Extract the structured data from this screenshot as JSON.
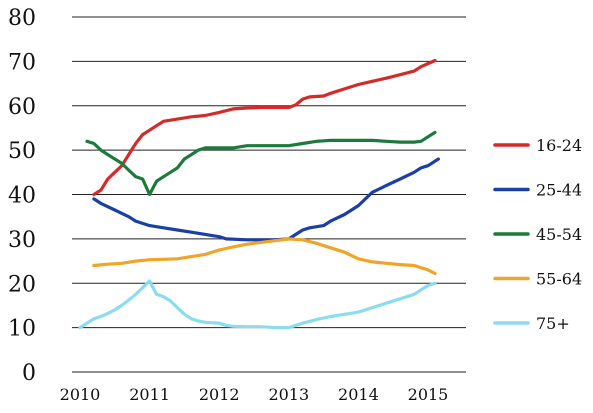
{
  "chart_data": {
    "type": "line",
    "title": "",
    "xlabel": "",
    "ylabel": "",
    "ylim": [
      0,
      80
    ],
    "xlim": [
      2010,
      2015
    ],
    "yticks": [
      "0",
      "10",
      "20",
      "30",
      "40",
      "50",
      "60",
      "70",
      "80"
    ],
    "xticks": [
      "2010",
      "2011",
      "2012",
      "2013",
      "2014",
      "2015"
    ],
    "grid": true,
    "legend_position": "right",
    "series": [
      {
        "name": "16-24",
        "color": "#d42a28",
        "points": [
          [
            2010.2,
            40
          ],
          [
            2010.3,
            41
          ],
          [
            2010.4,
            43.5
          ],
          [
            2010.5,
            45
          ],
          [
            2010.6,
            46.5
          ],
          [
            2010.7,
            49
          ],
          [
            2010.8,
            51.5
          ],
          [
            2010.9,
            53.5
          ],
          [
            2011.0,
            54.5
          ],
          [
            2011.1,
            55.5
          ],
          [
            2011.2,
            56.5
          ],
          [
            2011.4,
            57
          ],
          [
            2011.6,
            57.5
          ],
          [
            2011.8,
            57.8
          ],
          [
            2012.0,
            58.5
          ],
          [
            2012.2,
            59.3
          ],
          [
            2012.4,
            59.5
          ],
          [
            2012.6,
            59.6
          ],
          [
            2012.8,
            59.6
          ],
          [
            2013.0,
            59.6
          ],
          [
            2013.1,
            60.2
          ],
          [
            2013.2,
            61.5
          ],
          [
            2013.3,
            62
          ],
          [
            2013.5,
            62.2
          ],
          [
            2013.6,
            62.8
          ],
          [
            2013.8,
            63.8
          ],
          [
            2014.0,
            64.8
          ],
          [
            2014.2,
            65.5
          ],
          [
            2014.4,
            66.2
          ],
          [
            2014.6,
            67
          ],
          [
            2014.8,
            67.8
          ],
          [
            2014.9,
            68.8
          ],
          [
            2015.0,
            69.5
          ],
          [
            2015.1,
            70.2
          ]
        ]
      },
      {
        "name": "25-44",
        "color": "#1a3fa6",
        "points": [
          [
            2010.2,
            39
          ],
          [
            2010.3,
            38
          ],
          [
            2010.5,
            36.5
          ],
          [
            2010.7,
            35
          ],
          [
            2010.8,
            34
          ],
          [
            2011.0,
            33
          ],
          [
            2011.2,
            32.5
          ],
          [
            2011.4,
            32
          ],
          [
            2011.6,
            31.5
          ],
          [
            2011.8,
            31
          ],
          [
            2012.0,
            30.5
          ],
          [
            2012.1,
            30
          ],
          [
            2012.4,
            29.8
          ],
          [
            2012.6,
            29.8
          ],
          [
            2012.8,
            29.8
          ],
          [
            2013.0,
            30
          ],
          [
            2013.1,
            31
          ],
          [
            2013.2,
            32
          ],
          [
            2013.3,
            32.5
          ],
          [
            2013.5,
            33
          ],
          [
            2013.6,
            34
          ],
          [
            2013.8,
            35.5
          ],
          [
            2014.0,
            37.5
          ],
          [
            2014.1,
            39
          ],
          [
            2014.2,
            40.5
          ],
          [
            2014.4,
            42
          ],
          [
            2014.6,
            43.5
          ],
          [
            2014.8,
            45
          ],
          [
            2014.9,
            46
          ],
          [
            2015.0,
            46.5
          ],
          [
            2015.1,
            47.5
          ],
          [
            2015.15,
            48
          ]
        ]
      },
      {
        "name": "45-54",
        "color": "#1d7a3c",
        "points": [
          [
            2010.1,
            52
          ],
          [
            2010.2,
            51.5
          ],
          [
            2010.3,
            50
          ],
          [
            2010.4,
            49
          ],
          [
            2010.5,
            48
          ],
          [
            2010.6,
            47
          ],
          [
            2010.7,
            45.5
          ],
          [
            2010.8,
            44
          ],
          [
            2010.9,
            43.5
          ],
          [
            2011.0,
            40
          ],
          [
            2011.05,
            41.5
          ],
          [
            2011.1,
            43
          ],
          [
            2011.2,
            44
          ],
          [
            2011.3,
            45
          ],
          [
            2011.4,
            46
          ],
          [
            2011.5,
            48
          ],
          [
            2011.6,
            49
          ],
          [
            2011.7,
            50
          ],
          [
            2011.8,
            50.5
          ],
          [
            2012.0,
            50.5
          ],
          [
            2012.2,
            50.5
          ],
          [
            2012.4,
            51
          ],
          [
            2012.6,
            51
          ],
          [
            2012.8,
            51
          ],
          [
            2013.0,
            51
          ],
          [
            2013.2,
            51.5
          ],
          [
            2013.4,
            52
          ],
          [
            2013.6,
            52.2
          ],
          [
            2013.8,
            52.2
          ],
          [
            2014.0,
            52.2
          ],
          [
            2014.2,
            52.2
          ],
          [
            2014.4,
            52
          ],
          [
            2014.6,
            51.8
          ],
          [
            2014.8,
            51.8
          ],
          [
            2014.9,
            52
          ],
          [
            2015.0,
            53
          ],
          [
            2015.1,
            54
          ]
        ]
      },
      {
        "name": "55-64",
        "color": "#f0a428",
        "points": [
          [
            2010.2,
            24
          ],
          [
            2010.4,
            24.3
          ],
          [
            2010.6,
            24.5
          ],
          [
            2010.8,
            25
          ],
          [
            2011.0,
            25.3
          ],
          [
            2011.2,
            25.4
          ],
          [
            2011.4,
            25.5
          ],
          [
            2011.6,
            26
          ],
          [
            2011.8,
            26.5
          ],
          [
            2012.0,
            27.5
          ],
          [
            2012.2,
            28.2
          ],
          [
            2012.4,
            28.8
          ],
          [
            2012.6,
            29.2
          ],
          [
            2012.8,
            29.6
          ],
          [
            2013.0,
            30
          ],
          [
            2013.2,
            29.8
          ],
          [
            2013.4,
            29
          ],
          [
            2013.6,
            28
          ],
          [
            2013.8,
            27
          ],
          [
            2014.0,
            25.5
          ],
          [
            2014.2,
            24.8
          ],
          [
            2014.4,
            24.5
          ],
          [
            2014.6,
            24.2
          ],
          [
            2014.8,
            24
          ],
          [
            2015.0,
            23
          ],
          [
            2015.1,
            22.2
          ]
        ]
      },
      {
        "name": "75+",
        "color": "#8cdcf0",
        "points": [
          [
            2010.0,
            10
          ],
          [
            2010.1,
            11
          ],
          [
            2010.2,
            12
          ],
          [
            2010.3,
            12.5
          ],
          [
            2010.4,
            13.2
          ],
          [
            2010.5,
            14
          ],
          [
            2010.6,
            15
          ],
          [
            2010.7,
            16.2
          ],
          [
            2010.8,
            17.5
          ],
          [
            2010.9,
            19
          ],
          [
            2011.0,
            20.5
          ],
          [
            2011.05,
            19
          ],
          [
            2011.1,
            17.5
          ],
          [
            2011.2,
            17
          ],
          [
            2011.3,
            16
          ],
          [
            2011.4,
            14.5
          ],
          [
            2011.5,
            13
          ],
          [
            2011.6,
            12
          ],
          [
            2011.7,
            11.5
          ],
          [
            2011.8,
            11.2
          ],
          [
            2012.0,
            11
          ],
          [
            2012.1,
            10.5
          ],
          [
            2012.2,
            10.3
          ],
          [
            2012.4,
            10.2
          ],
          [
            2012.6,
            10.2
          ],
          [
            2012.8,
            10
          ],
          [
            2013.0,
            10
          ],
          [
            2013.1,
            10.5
          ],
          [
            2013.2,
            11
          ],
          [
            2013.4,
            11.8
          ],
          [
            2013.6,
            12.5
          ],
          [
            2013.8,
            13
          ],
          [
            2014.0,
            13.5
          ],
          [
            2014.2,
            14.5
          ],
          [
            2014.4,
            15.5
          ],
          [
            2014.6,
            16.5
          ],
          [
            2014.8,
            17.5
          ],
          [
            2014.9,
            18.5
          ],
          [
            2015.0,
            19.5
          ],
          [
            2015.1,
            20
          ]
        ]
      }
    ]
  }
}
